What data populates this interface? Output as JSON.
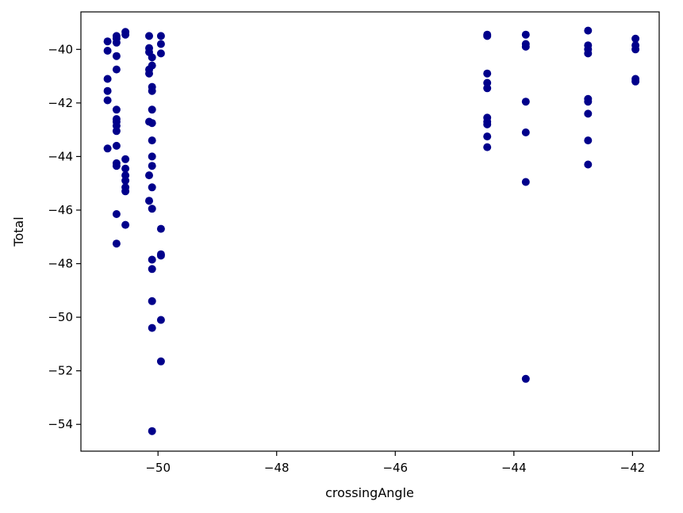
{
  "chart_data": {
    "type": "scatter",
    "title": "",
    "xlabel": "crossingAngle",
    "ylabel": "Total",
    "xlim": [
      -51.3,
      -41.55
    ],
    "ylim": [
      -55.0,
      -38.6
    ],
    "xticks": [
      -50,
      -48,
      -46,
      -44,
      -42
    ],
    "yticks": [
      -54,
      -52,
      -50,
      -48,
      -46,
      -44,
      -42,
      -40
    ],
    "xtick_labels": [
      "−50",
      "−48",
      "−46",
      "−44",
      "−42"
    ],
    "ytick_labels": [
      "−54",
      "−52",
      "−50",
      "−48",
      "−46",
      "−44",
      "−42",
      "−40"
    ],
    "grid": false,
    "marker_color": "#00008b",
    "series": [
      {
        "points": [
          [
            -50.85,
            -39.7
          ],
          [
            -50.85,
            -40.05
          ],
          [
            -50.85,
            -41.1
          ],
          [
            -50.85,
            -41.55
          ],
          [
            -50.85,
            -41.9
          ],
          [
            -50.85,
            -43.7
          ],
          [
            -50.7,
            -39.5
          ],
          [
            -50.7,
            -39.6
          ],
          [
            -50.7,
            -39.75
          ],
          [
            -50.7,
            -40.25
          ],
          [
            -50.7,
            -40.75
          ],
          [
            -50.7,
            -42.25
          ],
          [
            -50.7,
            -42.6
          ],
          [
            -50.7,
            -42.7
          ],
          [
            -50.7,
            -42.85
          ],
          [
            -50.7,
            -43.05
          ],
          [
            -50.7,
            -43.6
          ],
          [
            -50.7,
            -44.25
          ],
          [
            -50.7,
            -44.35
          ],
          [
            -50.7,
            -46.15
          ],
          [
            -50.7,
            -47.25
          ],
          [
            -50.55,
            -39.35
          ],
          [
            -50.55,
            -39.45
          ],
          [
            -50.55,
            -44.1
          ],
          [
            -50.55,
            -44.45
          ],
          [
            -50.55,
            -44.7
          ],
          [
            -50.55,
            -44.9
          ],
          [
            -50.55,
            -45.15
          ],
          [
            -50.55,
            -45.3
          ],
          [
            -50.55,
            -46.55
          ],
          [
            -50.15,
            -39.5
          ],
          [
            -50.15,
            -39.95
          ],
          [
            -50.15,
            -40.1
          ],
          [
            -50.15,
            -40.75
          ],
          [
            -50.15,
            -40.9
          ],
          [
            -50.15,
            -42.7
          ],
          [
            -50.15,
            -44.7
          ],
          [
            -50.15,
            -45.65
          ],
          [
            -50.1,
            -40.3
          ],
          [
            -50.1,
            -40.6
          ],
          [
            -50.1,
            -41.4
          ],
          [
            -50.1,
            -41.55
          ],
          [
            -50.1,
            -42.25
          ],
          [
            -50.1,
            -42.75
          ],
          [
            -50.1,
            -43.4
          ],
          [
            -50.1,
            -44.0
          ],
          [
            -50.1,
            -44.35
          ],
          [
            -50.1,
            -45.15
          ],
          [
            -50.1,
            -45.95
          ],
          [
            -50.1,
            -47.85
          ],
          [
            -50.1,
            -48.2
          ],
          [
            -50.1,
            -49.4
          ],
          [
            -50.1,
            -50.4
          ],
          [
            -50.1,
            -54.25
          ],
          [
            -49.95,
            -39.5
          ],
          [
            -49.95,
            -39.8
          ],
          [
            -49.95,
            -40.15
          ],
          [
            -49.95,
            -46.7
          ],
          [
            -49.95,
            -47.65
          ],
          [
            -49.95,
            -47.7
          ],
          [
            -49.95,
            -50.1
          ],
          [
            -49.95,
            -51.65
          ],
          [
            -44.45,
            -39.45
          ],
          [
            -44.45,
            -39.5
          ],
          [
            -44.45,
            -40.9
          ],
          [
            -44.45,
            -41.25
          ],
          [
            -44.45,
            -41.45
          ],
          [
            -44.45,
            -42.55
          ],
          [
            -44.45,
            -42.7
          ],
          [
            -44.45,
            -42.8
          ],
          [
            -44.45,
            -43.25
          ],
          [
            -44.45,
            -43.65
          ],
          [
            -43.8,
            -39.45
          ],
          [
            -43.8,
            -39.8
          ],
          [
            -43.8,
            -39.9
          ],
          [
            -43.8,
            -41.95
          ],
          [
            -43.8,
            -43.1
          ],
          [
            -43.8,
            -44.95
          ],
          [
            -43.8,
            -52.3
          ],
          [
            -42.75,
            -39.3
          ],
          [
            -42.75,
            -39.85
          ],
          [
            -42.75,
            -40.0
          ],
          [
            -42.75,
            -40.15
          ],
          [
            -42.75,
            -41.85
          ],
          [
            -42.75,
            -41.95
          ],
          [
            -42.75,
            -42.4
          ],
          [
            -42.75,
            -43.4
          ],
          [
            -42.75,
            -44.3
          ],
          [
            -41.95,
            -39.6
          ],
          [
            -41.95,
            -39.85
          ],
          [
            -41.95,
            -40.0
          ],
          [
            -41.95,
            -41.1
          ],
          [
            -41.95,
            -41.2
          ]
        ]
      }
    ]
  }
}
